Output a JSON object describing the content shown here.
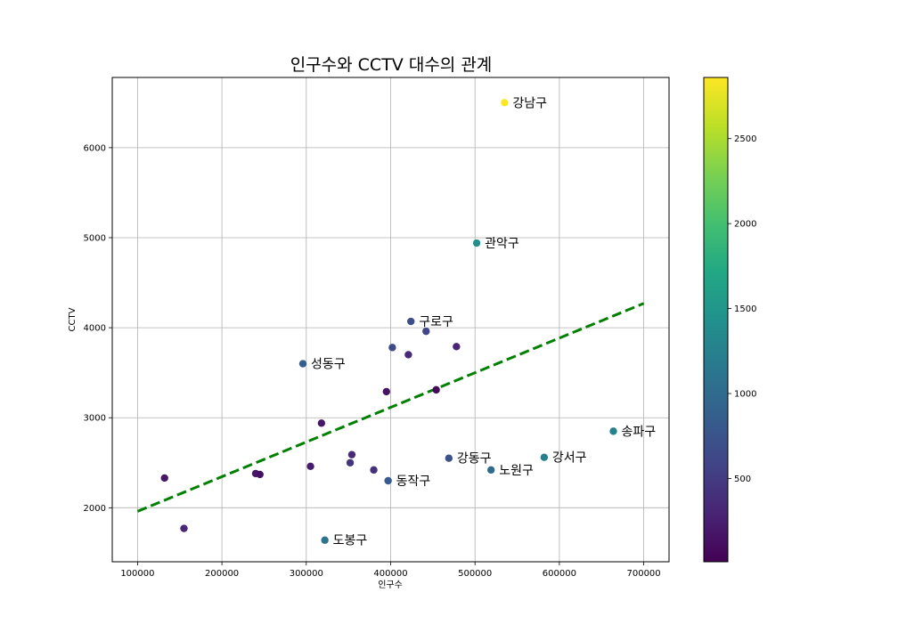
{
  "chart_data": {
    "type": "scatter",
    "title": "인구수와 CCTV 대수의 관계",
    "xlabel": "인구수",
    "ylabel": "CCTV",
    "xlim": [
      70000,
      730000
    ],
    "ylim": [
      1400,
      6780
    ],
    "xticks": [
      100000,
      200000,
      300000,
      400000,
      500000,
      600000,
      700000
    ],
    "yticks": [
      2000,
      3000,
      4000,
      5000,
      6000
    ],
    "grid": true,
    "points": [
      {
        "x": 535000,
        "y": 6500,
        "c": 2860,
        "label": "강남구"
      },
      {
        "x": 502000,
        "y": 4940,
        "c": 1420,
        "label": "관악구"
      },
      {
        "x": 424000,
        "y": 4070,
        "c": 700,
        "label": "구로구"
      },
      {
        "x": 296000,
        "y": 3600,
        "c": 850,
        "label": "성동구"
      },
      {
        "x": 664000,
        "y": 2850,
        "c": 1250,
        "label": "송파구"
      },
      {
        "x": 582000,
        "y": 2560,
        "c": 1250,
        "label": "강서구"
      },
      {
        "x": 469000,
        "y": 2550,
        "c": 720,
        "label": "강동구"
      },
      {
        "x": 519000,
        "y": 2420,
        "c": 1000,
        "label": "노원구"
      },
      {
        "x": 397000,
        "y": 2300,
        "c": 820,
        "label": "동작구"
      },
      {
        "x": 322000,
        "y": 1640,
        "c": 1100,
        "label": "도봉구"
      },
      {
        "x": 402000,
        "y": 3780,
        "c": 650,
        "label": ""
      },
      {
        "x": 442000,
        "y": 3960,
        "c": 600,
        "label": ""
      },
      {
        "x": 478000,
        "y": 3790,
        "c": 300,
        "label": ""
      },
      {
        "x": 421000,
        "y": 3700,
        "c": 350,
        "label": ""
      },
      {
        "x": 395000,
        "y": 3290,
        "c": 160,
        "label": ""
      },
      {
        "x": 454000,
        "y": 3310,
        "c": 80,
        "label": ""
      },
      {
        "x": 318000,
        "y": 2940,
        "c": 180,
        "label": ""
      },
      {
        "x": 132000,
        "y": 2330,
        "c": 200,
        "label": ""
      },
      {
        "x": 240000,
        "y": 2380,
        "c": 170,
        "label": ""
      },
      {
        "x": 245000,
        "y": 2370,
        "c": 140,
        "label": ""
      },
      {
        "x": 305000,
        "y": 2460,
        "c": 230,
        "label": ""
      },
      {
        "x": 354000,
        "y": 2590,
        "c": 350,
        "label": ""
      },
      {
        "x": 352000,
        "y": 2500,
        "c": 450,
        "label": ""
      },
      {
        "x": 380000,
        "y": 2420,
        "c": 400,
        "label": ""
      },
      {
        "x": 155000,
        "y": 1770,
        "c": 300,
        "label": ""
      }
    ],
    "trendline": {
      "x": [
        100000,
        700000
      ],
      "y": [
        1960,
        4270
      ],
      "color": "#008000",
      "style": "dashed"
    },
    "colorbar": {
      "cmap": "viridis",
      "range": [
        10,
        2860
      ],
      "ticks": [
        500,
        1000,
        1500,
        2000,
        2500
      ]
    }
  }
}
